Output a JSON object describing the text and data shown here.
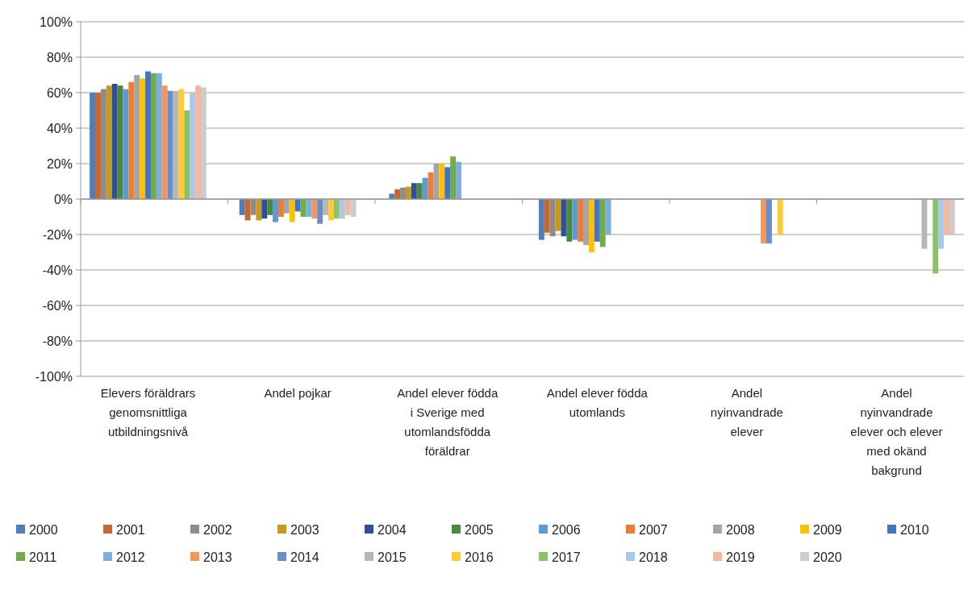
{
  "chart_data": {
    "type": "bar",
    "categories": [
      "Elevers föräldrars genomsnittliga utbildningsnivå",
      "Andel pojkar",
      "Andel elever födda i Sverige med utomlandsfödda föräldrar",
      "Andel elever födda utomlands",
      "Andel nyinvandrade elever",
      "Andel nyinvandrade elever och elever med okänd bakgrund"
    ],
    "series": [
      {
        "name": "2000",
        "color": "#4e7fb8",
        "values": [
          60,
          -9,
          3,
          -23,
          null,
          null
        ]
      },
      {
        "name": "2001",
        "color": "#c8682e",
        "values": [
          60,
          -12,
          5.5,
          -19,
          null,
          null
        ]
      },
      {
        "name": "2002",
        "color": "#8c8c8c",
        "values": [
          62,
          -9,
          6.5,
          -21,
          null,
          null
        ]
      },
      {
        "name": "2003",
        "color": "#c99a1a",
        "values": [
          64,
          -12,
          7,
          -18,
          null,
          null
        ]
      },
      {
        "name": "2004",
        "color": "#2f4f9a",
        "values": [
          65,
          -11,
          9,
          -21,
          null,
          null
        ]
      },
      {
        "name": "2005",
        "color": "#4a8a3a",
        "values": [
          64,
          -9,
          9,
          -24,
          null,
          null
        ]
      },
      {
        "name": "2006",
        "color": "#5b9bd5",
        "values": [
          62,
          -13,
          12,
          -23,
          null,
          null
        ]
      },
      {
        "name": "2007",
        "color": "#ed7d31",
        "values": [
          66,
          -10,
          15,
          -24,
          null,
          null
        ]
      },
      {
        "name": "2008",
        "color": "#a5a5a5",
        "values": [
          70,
          -8,
          20,
          -26,
          null,
          null
        ]
      },
      {
        "name": "2009",
        "color": "#ffc000",
        "values": [
          68,
          -13,
          20,
          -30,
          null,
          null
        ]
      },
      {
        "name": "2010",
        "color": "#4472c4",
        "values": [
          72,
          -7,
          18,
          -24,
          null,
          null
        ]
      },
      {
        "name": "2011",
        "color": "#70ad47",
        "values": [
          71,
          -10,
          24,
          -27,
          null,
          null
        ]
      },
      {
        "name": "2012",
        "color": "#7cafdd",
        "values": [
          71,
          -10,
          21,
          -20,
          null,
          null
        ]
      },
      {
        "name": "2013",
        "color": "#f1975a",
        "values": [
          64,
          -11,
          null,
          null,
          -25,
          null
        ]
      },
      {
        "name": "2014",
        "color": "#698ed0",
        "values": [
          61,
          -14,
          null,
          null,
          -25,
          null
        ]
      },
      {
        "name": "2015",
        "color": "#b7b7b7",
        "values": [
          61,
          -9,
          null,
          null,
          null,
          -28
        ]
      },
      {
        "name": "2016",
        "color": "#ffcd33",
        "values": [
          62,
          -12,
          null,
          null,
          -20,
          null
        ]
      },
      {
        "name": "2017",
        "color": "#8cc168",
        "values": [
          50,
          -11,
          null,
          null,
          null,
          -42
        ]
      },
      {
        "name": "2018",
        "color": "#a9c9ea",
        "values": [
          60,
          -11,
          null,
          null,
          null,
          -28
        ]
      },
      {
        "name": "2019",
        "color": "#f4b8a0",
        "values": [
          64,
          -9,
          null,
          null,
          null,
          -20
        ]
      },
      {
        "name": "2020",
        "color": "#cccccc",
        "values": [
          63,
          -10,
          null,
          null,
          null,
          -20
        ]
      }
    ],
    "ylim": [
      -100,
      100
    ],
    "yticks": [
      {
        "value": -100,
        "label": "-100%"
      },
      {
        "value": -80,
        "label": "-80%"
      },
      {
        "value": -60,
        "label": "-60%"
      },
      {
        "value": -40,
        "label": "-40%"
      },
      {
        "value": -20,
        "label": "-20%"
      },
      {
        "value": 0,
        "label": "0%"
      },
      {
        "value": 20,
        "label": "20%"
      },
      {
        "value": 40,
        "label": "40%"
      },
      {
        "value": 60,
        "label": "60%"
      },
      {
        "value": 80,
        "label": "80%"
      },
      {
        "value": 100,
        "label": "100%"
      }
    ],
    "grid": "y",
    "legend": "bottom"
  }
}
